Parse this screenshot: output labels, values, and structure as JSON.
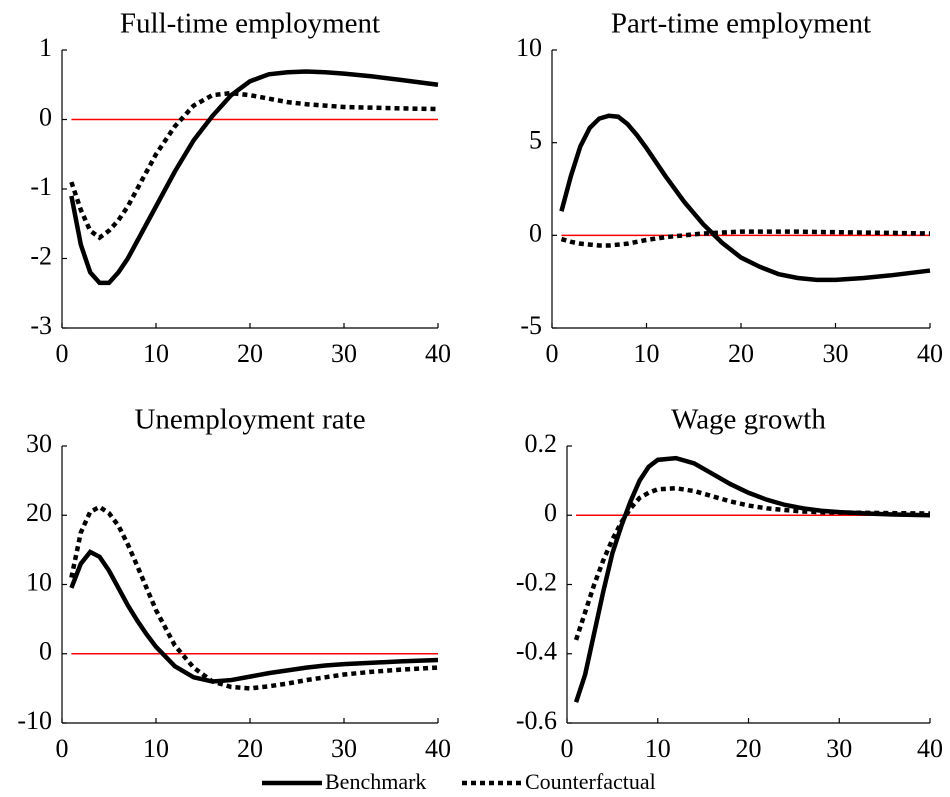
{
  "chart_data": [
    {
      "type": "line",
      "title": "Full-time employment",
      "x": [
        1,
        2,
        3,
        4,
        5,
        6,
        7,
        8,
        9,
        10,
        12,
        14,
        16,
        18,
        20,
        22,
        24,
        26,
        28,
        30,
        33,
        36,
        40
      ],
      "series": [
        {
          "style": "solid",
          "color": "#000000",
          "values": [
            -1.1,
            -1.8,
            -2.2,
            -2.35,
            -2.35,
            -2.2,
            -2.0,
            -1.75,
            -1.5,
            -1.25,
            -0.75,
            -0.3,
            0.05,
            0.35,
            0.55,
            0.65,
            0.68,
            0.69,
            0.68,
            0.66,
            0.62,
            0.57,
            0.5
          ]
        },
        {
          "style": "dotted",
          "color": "#000000",
          "values": [
            -0.9,
            -1.3,
            -1.6,
            -1.7,
            -1.6,
            -1.45,
            -1.25,
            -1.0,
            -0.75,
            -0.5,
            -0.1,
            0.2,
            0.35,
            0.38,
            0.35,
            0.3,
            0.25,
            0.22,
            0.2,
            0.18,
            0.17,
            0.16,
            0.15
          ]
        }
      ],
      "reference_line": {
        "y": 0,
        "color": "#ff0000"
      },
      "xlim": [
        0,
        40
      ],
      "xticks": [
        0,
        10,
        20,
        30,
        40
      ],
      "ylim": [
        -3,
        1
      ],
      "yticks": [
        -3,
        -2,
        -1,
        0,
        1
      ]
    },
    {
      "type": "line",
      "title": "Part-time employment",
      "x": [
        1,
        2,
        3,
        4,
        5,
        6,
        7,
        8,
        9,
        10,
        12,
        14,
        16,
        18,
        20,
        22,
        24,
        26,
        28,
        30,
        33,
        36,
        40
      ],
      "series": [
        {
          "style": "solid",
          "color": "#000000",
          "values": [
            1.3,
            3.2,
            4.8,
            5.8,
            6.3,
            6.45,
            6.4,
            6.0,
            5.4,
            4.7,
            3.2,
            1.8,
            0.6,
            -0.4,
            -1.2,
            -1.7,
            -2.1,
            -2.3,
            -2.4,
            -2.4,
            -2.3,
            -2.15,
            -1.9
          ]
        },
        {
          "style": "dotted",
          "color": "#000000",
          "values": [
            -0.2,
            -0.35,
            -0.45,
            -0.5,
            -0.55,
            -0.55,
            -0.5,
            -0.45,
            -0.35,
            -0.25,
            -0.1,
            0.0,
            0.1,
            0.15,
            0.2,
            0.2,
            0.2,
            0.2,
            0.18,
            0.17,
            0.15,
            0.13,
            0.1
          ]
        }
      ],
      "reference_line": {
        "y": 0,
        "color": "#ff0000"
      },
      "xlim": [
        0,
        40
      ],
      "xticks": [
        0,
        10,
        20,
        30,
        40
      ],
      "ylim": [
        -5,
        10
      ],
      "yticks": [
        -5,
        0,
        5,
        10
      ]
    },
    {
      "type": "line",
      "title": "Unemployment rate",
      "x": [
        1,
        2,
        3,
        4,
        5,
        6,
        7,
        8,
        9,
        10,
        12,
        14,
        16,
        18,
        20,
        22,
        24,
        26,
        28,
        30,
        33,
        36,
        40
      ],
      "series": [
        {
          "style": "solid",
          "color": "#000000",
          "values": [
            9.5,
            13,
            14.7,
            14,
            12,
            9.5,
            7,
            4.8,
            2.8,
            1.0,
            -1.8,
            -3.4,
            -4.0,
            -3.8,
            -3.3,
            -2.8,
            -2.4,
            -2.0,
            -1.7,
            -1.5,
            -1.3,
            -1.1,
            -0.9
          ]
        },
        {
          "style": "dotted",
          "color": "#000000",
          "values": [
            11,
            17.5,
            20.5,
            21.2,
            20.3,
            18.5,
            15.8,
            12.7,
            9.5,
            6.3,
            1.2,
            -2.0,
            -4.0,
            -4.8,
            -5.0,
            -4.7,
            -4.3,
            -3.8,
            -3.4,
            -3.0,
            -2.6,
            -2.3,
            -2.0
          ]
        }
      ],
      "reference_line": {
        "y": 0,
        "color": "#ff0000"
      },
      "xlim": [
        0,
        40
      ],
      "xticks": [
        0,
        10,
        20,
        30,
        40
      ],
      "ylim": [
        -10,
        30
      ],
      "yticks": [
        -10,
        0,
        10,
        20,
        30
      ]
    },
    {
      "type": "line",
      "title": "Wage growth",
      "x": [
        1,
        2,
        3,
        4,
        5,
        6,
        7,
        8,
        9,
        10,
        12,
        14,
        16,
        18,
        20,
        22,
        24,
        26,
        28,
        30,
        33,
        36,
        40
      ],
      "series": [
        {
          "style": "solid",
          "color": "#000000",
          "values": [
            -0.54,
            -0.46,
            -0.34,
            -0.22,
            -0.11,
            -0.03,
            0.04,
            0.1,
            0.14,
            0.16,
            0.165,
            0.15,
            0.12,
            0.09,
            0.065,
            0.045,
            0.03,
            0.02,
            0.013,
            0.009,
            0.005,
            0.002,
            0.0
          ]
        },
        {
          "style": "dotted",
          "color": "#000000",
          "values": [
            -0.36,
            -0.28,
            -0.2,
            -0.13,
            -0.07,
            -0.02,
            0.02,
            0.05,
            0.065,
            0.075,
            0.078,
            0.07,
            0.055,
            0.04,
            0.028,
            0.02,
            0.015,
            0.011,
            0.009,
            0.008,
            0.007,
            0.006,
            0.005
          ]
        }
      ],
      "reference_line": {
        "y": 0,
        "color": "#ff0000"
      },
      "xlim": [
        0,
        40
      ],
      "xticks": [
        0,
        10,
        20,
        30,
        40
      ],
      "ylim": [
        -0.6,
        0.2
      ],
      "yticks": [
        -0.6,
        -0.4,
        -0.2,
        0,
        0.2
      ]
    }
  ],
  "legend": [
    {
      "name": "Benchmark",
      "style": "solid"
    },
    {
      "name": "Counterfactual",
      "style": "dotted"
    }
  ]
}
